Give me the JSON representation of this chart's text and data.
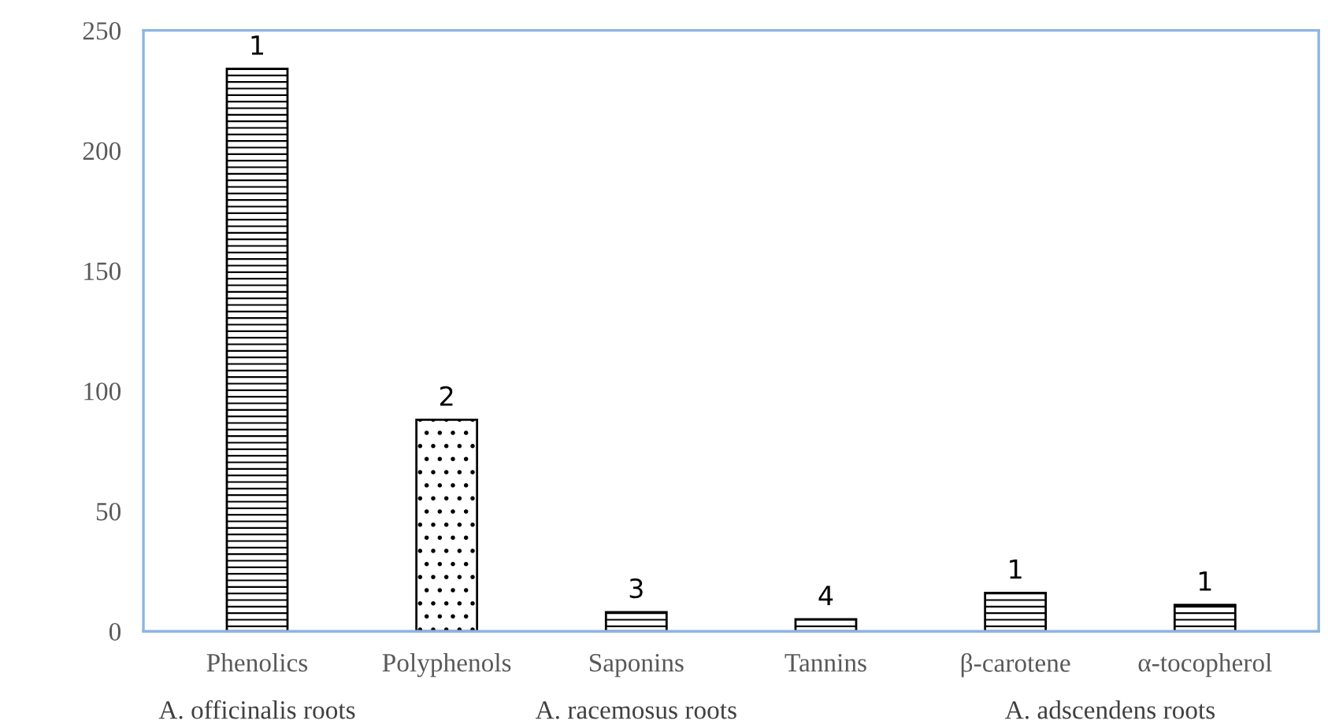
{
  "chart_data": {
    "type": "bar",
    "categories": [
      "Phenolics",
      "Polyphenols",
      "Saponins",
      "Tannins",
      "β-carotene",
      "α-tocopherol"
    ],
    "values": [
      234,
      88,
      8,
      5,
      16,
      11
    ],
    "ylim": [
      0,
      250
    ],
    "yticks": [
      0,
      50,
      100,
      150,
      200,
      250
    ],
    "annotations": [
      {
        "text": "1",
        "x": "Phenolics",
        "y": 234
      },
      {
        "text": "2",
        "x": "Polyphenols",
        "y": 88
      },
      {
        "text": "3",
        "x": "Saponins",
        "y": 8
      },
      {
        "text": "4",
        "x": "Tannins",
        "y": 5
      },
      {
        "text": "1",
        "x": "β-carotene",
        "y": 16
      },
      {
        "text": "1",
        "x": "α-tocopherol",
        "y": 11
      },
      "A. officinalis roots",
      "A. racemosus roots",
      "A. adscendens roots"
    ]
  }
}
